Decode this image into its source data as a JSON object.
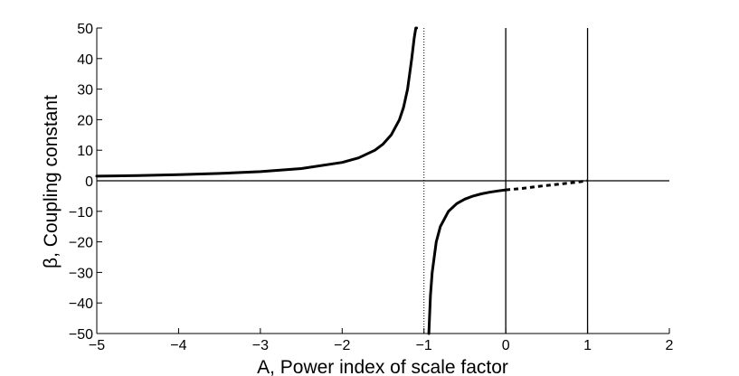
{
  "chart_data": {
    "type": "line",
    "title": "",
    "xlabel": "A, Power index of scale factor",
    "ylabel": "β, Coupling constant",
    "xlim": [
      -5,
      2
    ],
    "ylim": [
      -50,
      50
    ],
    "xticks": [
      -5,
      -4,
      -3,
      -2,
      -1,
      0,
      1,
      2
    ],
    "yticks": [
      -50,
      -40,
      -30,
      -20,
      -10,
      0,
      10,
      20,
      30,
      40,
      50
    ],
    "xtick_labels": [
      "−5",
      "−4",
      "−3",
      "−2",
      "−1",
      "0",
      "1",
      "2"
    ],
    "ytick_labels": [
      "−50",
      "−40",
      "−30",
      "−20",
      "−10",
      "0",
      "10",
      "20",
      "30",
      "40",
      "50"
    ],
    "grid": false,
    "reference_lines": [
      {
        "orientation": "vertical",
        "x": -1,
        "style": "dotted"
      },
      {
        "orientation": "vertical",
        "x": 0,
        "style": "solid"
      },
      {
        "orientation": "vertical",
        "x": 1,
        "style": "solid"
      },
      {
        "orientation": "horizontal",
        "y": 0,
        "style": "solid"
      }
    ],
    "series": [
      {
        "style": "solid",
        "x": [
          -5,
          -4.5,
          -4,
          -3.5,
          -3,
          -2.5,
          -2,
          -1.8,
          -1.6,
          -1.5,
          -1.4,
          -1.3,
          -1.25,
          -1.2,
          -1.15,
          -1.12,
          -1.1,
          -1.09
        ],
        "y": [
          1.5,
          1.71,
          2.0,
          2.4,
          3.0,
          4.0,
          6.0,
          7.5,
          10.0,
          12.0,
          15.0,
          20.0,
          24.0,
          30.0,
          40.0,
          46.7,
          50.0,
          50.0
        ]
      },
      {
        "style": "solid",
        "x": [
          -0.94,
          -0.92,
          -0.9,
          -0.85,
          -0.8,
          -0.7,
          -0.6,
          -0.5,
          -0.4,
          -0.3,
          -0.2,
          -0.1,
          0
        ],
        "y": [
          -50.0,
          -37.5,
          -30.0,
          -20.0,
          -15.0,
          -10.0,
          -7.5,
          -6.0,
          -5.0,
          -4.29,
          -3.75,
          -3.33,
          -3.0
        ]
      },
      {
        "style": "dashed",
        "x": [
          0,
          0.2,
          0.4,
          0.6,
          0.8,
          1.0
        ],
        "y": [
          -3.0,
          -2.5,
          -1.83,
          -1.25,
          -0.67,
          0
        ]
      }
    ]
  }
}
